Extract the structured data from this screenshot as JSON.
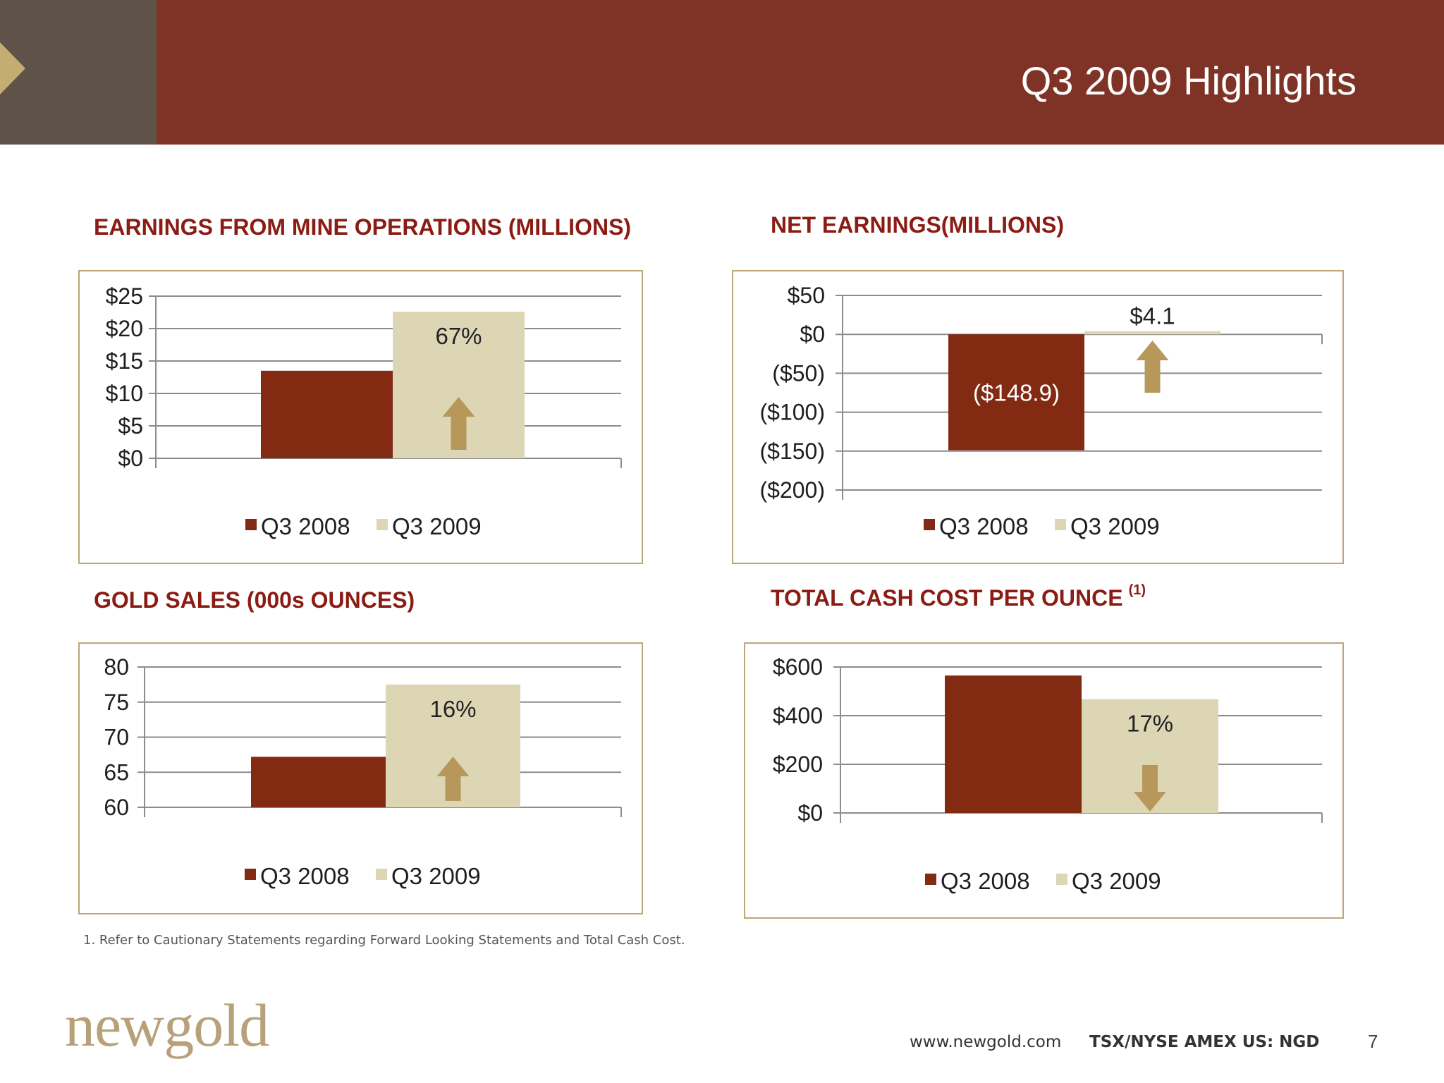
{
  "header": {
    "title": "Q3 2009 Highlights"
  },
  "colors": {
    "header_band": "#7f3326",
    "header_block": "#5e5249",
    "series_2008": "#822a12",
    "series_2009": "#ddd6b5",
    "title_red": "#8a1c14",
    "arrow": "#b8985a",
    "border": "#bfa57a"
  },
  "sections": {
    "earnings_mine": "EARNINGS FROM MINE OPERATIONS (MILLIONS)",
    "net_earnings": "NET EARNINGS(MILLIONS)",
    "gold_sales": "GOLD SALES (000s  OUNCES)",
    "cash_cost": "TOTAL CASH COST PER OUNCE",
    "cash_cost_note": "(1)"
  },
  "chart_data": [
    {
      "type": "bar",
      "title": "EARNINGS FROM MINE OPERATIONS (MILLIONS)",
      "categories": [
        ""
      ],
      "series": [
        {
          "name": "Q3 2008",
          "values": [
            13.5
          ],
          "color": "#822a12"
        },
        {
          "name": "Q3 2009",
          "values": [
            22.6
          ],
          "color": "#ddd6b5"
        }
      ],
      "ylim": [
        0,
        25
      ],
      "yticks": [
        "$0",
        "$5",
        "$10",
        "$15",
        "$20",
        "$25"
      ],
      "data_label": "67%",
      "arrow": "up",
      "grid": true,
      "legend": "bottom"
    },
    {
      "type": "bar",
      "title": "NET EARNINGS(MILLIONS)",
      "categories": [
        ""
      ],
      "series": [
        {
          "name": "Q3 2008",
          "values": [
            -148.9
          ],
          "color": "#822a12",
          "label": "($148.9)"
        },
        {
          "name": "Q3 2009",
          "values": [
            4.1
          ],
          "color": "#ddd6b5",
          "label": "$4.1"
        }
      ],
      "ylim": [
        -200,
        50
      ],
      "yticks": [
        "($200)",
        "($150)",
        "($100)",
        "($50)",
        "$0",
        "$50"
      ],
      "arrow": "up",
      "grid": true,
      "legend": "bottom"
    },
    {
      "type": "bar",
      "title": "GOLD SALES (000s  OUNCES)",
      "categories": [
        ""
      ],
      "series": [
        {
          "name": "Q3 2008",
          "values": [
            67.2
          ],
          "color": "#822a12"
        },
        {
          "name": "Q3 2009",
          "values": [
            77.5
          ],
          "color": "#ddd6b5"
        }
      ],
      "ylim": [
        60,
        80
      ],
      "yticks": [
        "60",
        "65",
        "70",
        "75",
        "80"
      ],
      "data_label": "16%",
      "arrow": "up",
      "grid": true,
      "legend": "bottom"
    },
    {
      "type": "bar",
      "title": "TOTAL CASH COST PER OUNCE",
      "categories": [
        ""
      ],
      "series": [
        {
          "name": "Q3 2008",
          "values": [
            565
          ],
          "color": "#822a12"
        },
        {
          "name": "Q3 2009",
          "values": [
            468
          ],
          "color": "#ddd6b5"
        }
      ],
      "ylim": [
        0,
        600
      ],
      "yticks": [
        "$0",
        "$200",
        "$400",
        "$600"
      ],
      "data_label": "17%",
      "arrow": "down",
      "grid": true,
      "legend": "bottom"
    }
  ],
  "footnote": "1. Refer to Cautionary Statements regarding Forward Looking Statements and Total Cash Cost.",
  "footer": {
    "logo": "newgold",
    "url": "www.newgold.com",
    "ticker": "TSX/NYSE AMEX US: NGD",
    "page": "7"
  }
}
